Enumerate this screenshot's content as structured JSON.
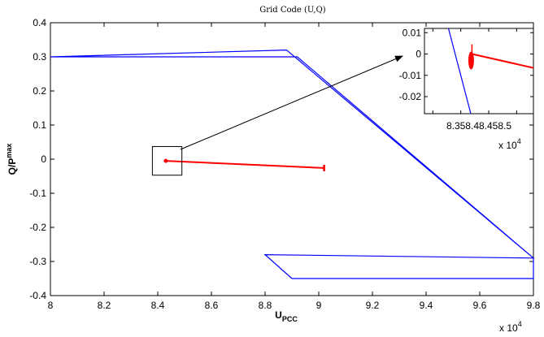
{
  "chart_data": [
    {
      "id": "main",
      "type": "line",
      "title": "Grid Code (U,Q)",
      "xlabel_main": "U",
      "xlabel_sub": "PCC",
      "ylabel_main": "Q/P",
      "ylabel_sup": "max",
      "x_multiplier": "x 10",
      "x_multiplier_exp": "4",
      "xlim": [
        8.0,
        9.8
      ],
      "ylim": [
        -0.4,
        0.4
      ],
      "xticks": [
        8.0,
        8.2,
        8.4,
        8.6,
        8.8,
        9.0,
        9.2,
        9.4,
        9.6,
        9.8
      ],
      "xtick_labels": [
        "8",
        "8.2",
        "8.4",
        "8.6",
        "8.8",
        "9",
        "9.2",
        "9.4",
        "9.6",
        "9.8"
      ],
      "yticks": [
        0.4,
        0.3,
        0.2,
        0.1,
        0.0,
        -0.1,
        -0.2,
        -0.3,
        -0.4
      ],
      "ytick_labels": [
        "0.4",
        "0.3",
        "0.2",
        "0.1",
        "0",
        "-0.1",
        "-0.2",
        "-0.3",
        "-0.4"
      ],
      "series": [
        {
          "color": "#0000ff",
          "x": [
            8.0,
            8.92,
            9.8,
            9.8,
            8.9,
            8.8,
            9.8,
            8.88,
            8.0
          ],
          "y": [
            0.3,
            0.3,
            -0.29,
            -0.35,
            -0.35,
            -0.28,
            -0.29,
            0.32,
            0.3
          ]
        },
        {
          "color": "#ff0000",
          "x": [
            8.43,
            9.02
          ],
          "y": [
            -0.005,
            -0.026
          ]
        }
      ],
      "zoom_box": {
        "x": [
          8.38,
          8.49
        ],
        "y": [
          -0.047,
          0.037
        ]
      }
    },
    {
      "id": "inset",
      "type": "line",
      "x_multiplier": "x 10",
      "x_multiplier_exp": "4",
      "xlim": [
        8.335,
        8.53
      ],
      "ylim": [
        -0.028,
        0.012
      ],
      "xticks": [
        8.35,
        8.4,
        8.45,
        8.5
      ],
      "xtick_labels_combined": "8.358.48.458.5",
      "yticks": [
        0.01,
        0.0,
        -0.01,
        -0.02
      ],
      "ytick_labels": [
        "0.01",
        "0",
        "-0.01",
        "-0.02"
      ],
      "series": [
        {
          "color": "#0000ff",
          "x": [
            8.378,
            8.418
          ],
          "y": [
            0.012,
            -0.028
          ]
        },
        {
          "color": "#ff0000",
          "x": [
            8.42,
            8.53
          ],
          "y": [
            0.0,
            -0.0065
          ]
        }
      ]
    }
  ]
}
